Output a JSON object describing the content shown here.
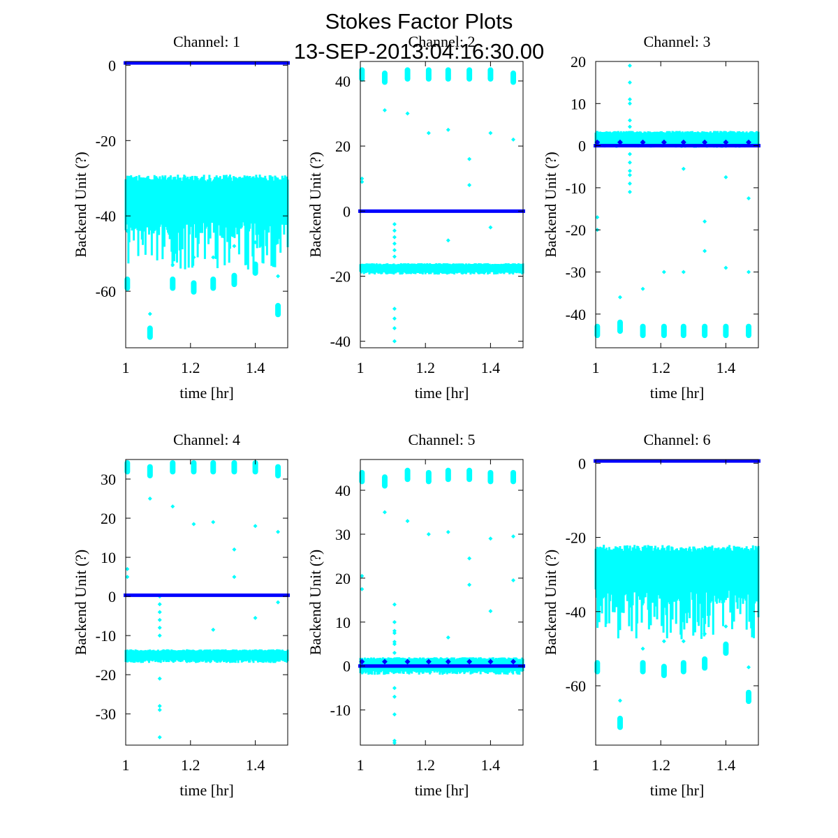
{
  "figure": {
    "title_line1": "Stokes Factor Plots",
    "title_line2": "13-SEP-2013:04:16:30.00"
  },
  "colors": {
    "series_a": "#00ffff",
    "series_b": "#0000ff",
    "axes": "#000000"
  },
  "chart_data": [
    {
      "type": "scatter",
      "title": "Channel: 1",
      "xlabel": "time [hr]",
      "ylabel": "Backend Unit (?)",
      "xlim": [
        1.0,
        1.5
      ],
      "ylim": [
        -75,
        1
      ],
      "xticks": [
        1,
        1.2,
        1.4
      ],
      "xtick_labels": [
        "1",
        "1.2",
        "1.4"
      ],
      "yticks": [
        0,
        -20,
        -40,
        -60
      ],
      "ytick_labels": [
        "0",
        "-20",
        "-40",
        "-60"
      ],
      "series": [
        {
          "name": "cyan",
          "color": "#00ffff",
          "kind": "band",
          "band_low": -45,
          "band_high": -29,
          "clusters": [
            [
              1.005,
              -58
            ],
            [
              1.075,
              -71
            ],
            [
              1.145,
              -58
            ],
            [
              1.21,
              -59
            ],
            [
              1.27,
              -58
            ],
            [
              1.335,
              -57
            ],
            [
              1.4,
              -54
            ],
            [
              1.47,
              -65
            ]
          ],
          "outliers": [
            [
              1.075,
              -66
            ],
            [
              1.145,
              -53
            ],
            [
              1.21,
              -51
            ],
            [
              1.27,
              -51
            ],
            [
              1.335,
              -48
            ],
            [
              1.4,
              -47
            ],
            [
              1.47,
              -56
            ],
            [
              1.005,
              -44
            ]
          ]
        },
        {
          "name": "blue",
          "color": "#0000ff",
          "kind": "line",
          "y": 0.6
        }
      ]
    },
    {
      "type": "scatter",
      "title": "Channel: 2",
      "xlabel": "time [hr]",
      "ylabel": "Backend Unit (?)",
      "xlim": [
        1.0,
        1.5
      ],
      "ylim": [
        -42,
        46
      ],
      "xticks": [
        1,
        1.2,
        1.4
      ],
      "xtick_labels": [
        "1",
        "1.2",
        "1.4"
      ],
      "yticks": [
        40,
        20,
        0,
        -20,
        -40
      ],
      "ytick_labels": [
        "40",
        "20",
        "0",
        "-20",
        "-40"
      ],
      "series": [
        {
          "name": "cyan",
          "color": "#00ffff",
          "kind": "band",
          "band_low": -19.5,
          "band_high": -16,
          "clusters": [
            [
              1.005,
              42
            ],
            [
              1.075,
              41
            ],
            [
              1.145,
              42
            ],
            [
              1.21,
              42
            ],
            [
              1.27,
              42
            ],
            [
              1.335,
              42
            ],
            [
              1.4,
              42
            ],
            [
              1.47,
              41
            ]
          ],
          "outliers": [
            [
              1.075,
              31
            ],
            [
              1.145,
              30
            ],
            [
              1.21,
              24
            ],
            [
              1.27,
              25
            ],
            [
              1.335,
              16
            ],
            [
              1.335,
              8
            ],
            [
              1.4,
              24
            ],
            [
              1.4,
              -5
            ],
            [
              1.47,
              22
            ],
            [
              1.005,
              10
            ],
            [
              1.005,
              9
            ],
            [
              1.27,
              -9
            ]
          ],
          "spike_x": 1.105,
          "spike_ys": [
            -4,
            -6,
            -8,
            -10,
            -12,
            -14,
            -30,
            -33,
            -36,
            -40
          ]
        },
        {
          "name": "blue",
          "color": "#0000ff",
          "kind": "line",
          "y": 0
        }
      ]
    },
    {
      "type": "scatter",
      "title": "Channel: 3",
      "xlabel": "time [hr]",
      "ylabel": "Backend Unit (?)",
      "xlim": [
        1.0,
        1.5
      ],
      "ylim": [
        -48,
        20
      ],
      "xticks": [
        1,
        1.2,
        1.4
      ],
      "xtick_labels": [
        "1",
        "1.2",
        "1.4"
      ],
      "yticks": [
        20,
        10,
        0,
        -10,
        -20,
        -30,
        -40
      ],
      "ytick_labels": [
        "20",
        "10",
        "0",
        "-10",
        "-20",
        "-30",
        "-40"
      ],
      "series": [
        {
          "name": "cyan",
          "color": "#00ffff",
          "kind": "band",
          "band_low": -0.5,
          "band_high": 3.5,
          "clusters": [
            [
              1.005,
              -44
            ],
            [
              1.075,
              -43
            ],
            [
              1.145,
              -44
            ],
            [
              1.21,
              -44
            ],
            [
              1.27,
              -44
            ],
            [
              1.335,
              -44
            ],
            [
              1.4,
              -44
            ],
            [
              1.47,
              -44
            ]
          ],
          "outliers": [
            [
              1.005,
              -17
            ],
            [
              1.005,
              -20
            ],
            [
              1.075,
              -36
            ],
            [
              1.145,
              -34
            ],
            [
              1.21,
              -30
            ],
            [
              1.27,
              -30
            ],
            [
              1.335,
              -18
            ],
            [
              1.335,
              -25
            ],
            [
              1.4,
              -29
            ],
            [
              1.47,
              -30
            ],
            [
              1.27,
              -5.5
            ],
            [
              1.4,
              -7.5
            ],
            [
              1.47,
              -12.5
            ]
          ],
          "spike_x": 1.105,
          "spike_ys": [
            19,
            15,
            11,
            10,
            6,
            4.5,
            -2,
            -4,
            -6,
            -7,
            -9,
            -11
          ]
        },
        {
          "name": "blue",
          "color": "#0000ff",
          "kind": "line",
          "y": 0,
          "markers": [
            [
              1.005,
              0.8
            ],
            [
              1.075,
              0.8
            ],
            [
              1.145,
              0.8
            ],
            [
              1.21,
              0.8
            ],
            [
              1.27,
              0.8
            ],
            [
              1.335,
              0.8
            ],
            [
              1.4,
              0.8
            ],
            [
              1.47,
              0.8
            ]
          ]
        }
      ]
    },
    {
      "type": "scatter",
      "title": "Channel: 4",
      "xlabel": "time [hr]",
      "ylabel": "Backend Unit (?)",
      "xlim": [
        1.0,
        1.5
      ],
      "ylim": [
        -38,
        35
      ],
      "xticks": [
        1,
        1.2,
        1.4
      ],
      "xtick_labels": [
        "1",
        "1.2",
        "1.4"
      ],
      "yticks": [
        30,
        20,
        10,
        0,
        -10,
        -20,
        -30
      ],
      "ytick_labels": [
        "30",
        "20",
        "10",
        "0",
        "-10",
        "-20",
        "-30"
      ],
      "series": [
        {
          "name": "cyan",
          "color": "#00ffff",
          "kind": "band",
          "band_low": -17,
          "band_high": -13.5,
          "clusters": [
            [
              1.005,
              33
            ],
            [
              1.075,
              32
            ],
            [
              1.145,
              33
            ],
            [
              1.21,
              33
            ],
            [
              1.27,
              33
            ],
            [
              1.335,
              33
            ],
            [
              1.4,
              33
            ],
            [
              1.47,
              32
            ]
          ],
          "outliers": [
            [
              1.005,
              7
            ],
            [
              1.005,
              5
            ],
            [
              1.075,
              25
            ],
            [
              1.145,
              23
            ],
            [
              1.21,
              18.5
            ],
            [
              1.27,
              19
            ],
            [
              1.335,
              12
            ],
            [
              1.335,
              5
            ],
            [
              1.4,
              18
            ],
            [
              1.47,
              16.5
            ],
            [
              1.27,
              -8.5
            ],
            [
              1.4,
              -5.5
            ],
            [
              1.47,
              -1.5
            ]
          ],
          "spike_x": 1.105,
          "spike_ys": [
            0,
            -2,
            -4,
            -6,
            -8,
            -10,
            -21,
            -28,
            -29,
            -36
          ]
        },
        {
          "name": "blue",
          "color": "#0000ff",
          "kind": "line",
          "y": 0.3
        }
      ]
    },
    {
      "type": "scatter",
      "title": "Channel: 5",
      "xlabel": "time [hr]",
      "ylabel": "Backend Unit (?)",
      "xlim": [
        1.0,
        1.5
      ],
      "ylim": [
        -18,
        47
      ],
      "xticks": [
        1,
        1.2,
        1.4
      ],
      "xtick_labels": [
        "1",
        "1.2",
        "1.4"
      ],
      "yticks": [
        40,
        30,
        20,
        10,
        0,
        -10
      ],
      "ytick_labels": [
        "40",
        "30",
        "20",
        "10",
        "0",
        "-10"
      ],
      "series": [
        {
          "name": "cyan",
          "color": "#00ffff",
          "kind": "band",
          "band_low": -2,
          "band_high": 2,
          "clusters": [
            [
              1.005,
              43
            ],
            [
              1.075,
              42
            ],
            [
              1.145,
              43.5
            ],
            [
              1.21,
              43
            ],
            [
              1.27,
              43.5
            ],
            [
              1.335,
              43.5
            ],
            [
              1.4,
              43
            ],
            [
              1.47,
              43
            ]
          ],
          "outliers": [
            [
              1.075,
              35
            ],
            [
              1.145,
              33
            ],
            [
              1.21,
              30
            ],
            [
              1.27,
              30.5
            ],
            [
              1.335,
              24.5
            ],
            [
              1.335,
              18.5
            ],
            [
              1.4,
              29
            ],
            [
              1.4,
              12.5
            ],
            [
              1.47,
              29.5
            ],
            [
              1.47,
              19.5
            ],
            [
              1.005,
              20.5
            ],
            [
              1.005,
              17.5
            ],
            [
              1.27,
              6.5
            ]
          ],
          "spike_x": 1.105,
          "spike_ys": [
            14,
            10,
            8,
            7.5,
            5.5,
            5,
            3,
            -5,
            -7,
            -11,
            -17,
            -17.5
          ]
        },
        {
          "name": "blue",
          "color": "#0000ff",
          "kind": "line",
          "y": 0,
          "markers": [
            [
              1.005,
              1
            ],
            [
              1.075,
              1
            ],
            [
              1.145,
              1
            ],
            [
              1.21,
              1
            ],
            [
              1.27,
              1
            ],
            [
              1.335,
              1
            ],
            [
              1.4,
              1
            ],
            [
              1.47,
              1
            ]
          ]
        }
      ]
    },
    {
      "type": "scatter",
      "title": "Channel: 6",
      "xlabel": "time [hr]",
      "ylabel": "Backend Unit (?)",
      "xlim": [
        1.0,
        1.5
      ],
      "ylim": [
        -76,
        1
      ],
      "xticks": [
        1,
        1.2,
        1.4
      ],
      "xtick_labels": [
        "1",
        "1.2",
        "1.4"
      ],
      "yticks": [
        0,
        -20,
        -40,
        -60
      ],
      "ytick_labels": [
        "0",
        "-20",
        "-40",
        "-60"
      ],
      "series": [
        {
          "name": "cyan",
          "color": "#00ffff",
          "kind": "band",
          "band_low": -38,
          "band_high": -22,
          "clusters": [
            [
              1.005,
              -55
            ],
            [
              1.075,
              -70
            ],
            [
              1.145,
              -55
            ],
            [
              1.21,
              -56
            ],
            [
              1.27,
              -55
            ],
            [
              1.335,
              -54
            ],
            [
              1.4,
              -50
            ],
            [
              1.47,
              -63
            ]
          ],
          "outliers": [
            [
              1.075,
              -64
            ],
            [
              1.145,
              -50
            ],
            [
              1.21,
              -48
            ],
            [
              1.27,
              -48
            ],
            [
              1.335,
              -46
            ],
            [
              1.4,
              -44
            ],
            [
              1.47,
              -55
            ]
          ]
        },
        {
          "name": "blue",
          "color": "#0000ff",
          "kind": "line",
          "y": 0.6
        }
      ]
    }
  ]
}
